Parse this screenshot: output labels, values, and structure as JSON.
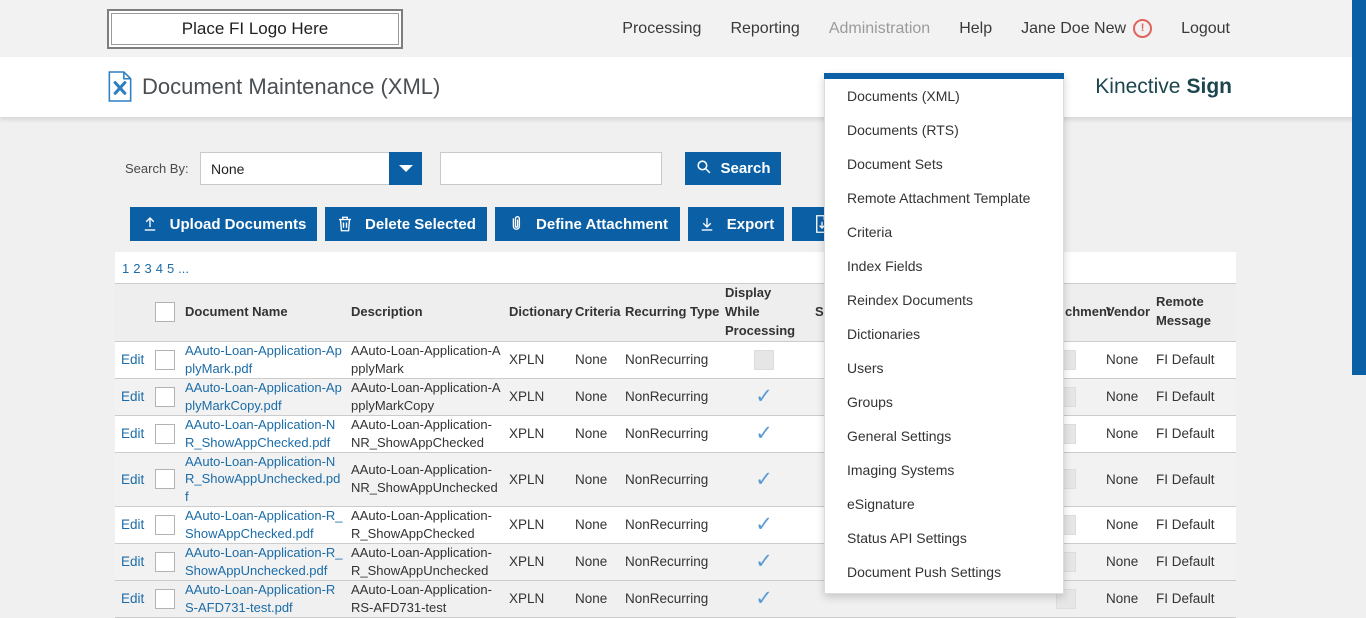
{
  "topbar": {
    "logo_text": "Place FI Logo Here",
    "nav": [
      {
        "label": "Processing"
      },
      {
        "label": "Reporting"
      },
      {
        "label": "Administration",
        "state": "open"
      },
      {
        "label": "Help"
      },
      {
        "label": "Jane Doe New",
        "alert_icon": true
      },
      {
        "label": "Logout"
      }
    ]
  },
  "header": {
    "title": "Document Maintenance (XML)",
    "brand_name": "Kinective",
    "brand_bold": "Sign"
  },
  "search": {
    "label": "Search By:",
    "selected_option": "None",
    "input_value": "",
    "input_placeholder": "",
    "button_label": "Search"
  },
  "toolbar": {
    "buttons": [
      {
        "label": "Upload Documents",
        "icon": "upload-icon"
      },
      {
        "label": "Delete Selected",
        "icon": "trash-icon"
      },
      {
        "label": "Define Attachment",
        "icon": "paperclip-icon"
      },
      {
        "label": "Export",
        "icon": "download-icon"
      },
      {
        "label": "",
        "icon": "document-download-icon"
      }
    ]
  },
  "pagination": {
    "pages": [
      "1",
      "2",
      "3",
      "4",
      "5",
      "..."
    ]
  },
  "table": {
    "headers": {
      "document_name": "Document Name",
      "description": "Description",
      "dictionary": "Dictionary",
      "criteria": "Criteria",
      "recurring_type": "Recurring Type",
      "display_while_processing": "Display While Processing",
      "partial_left_fragment": "S",
      "partial_attachment_fragment": "chment",
      "vendor": "Vendor",
      "remote_message": "Remote Message"
    },
    "rows": [
      {
        "edit": "Edit",
        "document_name": "AAuto-Loan-Application-ApplyMark.pdf",
        "description": "AAuto-Loan-Application-ApplyMark",
        "dictionary": "XPLN",
        "criteria": "None",
        "recurring_type": "NonRecurring",
        "display_while_processing": false,
        "attachment_checked": false,
        "vendor": "None",
        "remote_message": "FI Default"
      },
      {
        "edit": "Edit",
        "document_name": "AAuto-Loan-Application-ApplyMarkCopy.pdf",
        "description": "AAuto-Loan-Application-ApplyMarkCopy",
        "dictionary": "XPLN",
        "criteria": "None",
        "recurring_type": "NonRecurring",
        "display_while_processing": true,
        "attachment_checked": false,
        "vendor": "None",
        "remote_message": "FI Default"
      },
      {
        "edit": "Edit",
        "document_name": "AAuto-Loan-Application-NR_ShowAppChecked.pdf",
        "description": "AAuto-Loan-Application-NR_ShowAppChecked",
        "dictionary": "XPLN",
        "criteria": "None",
        "recurring_type": "NonRecurring",
        "display_while_processing": true,
        "attachment_checked": false,
        "vendor": "None",
        "remote_message": "FI Default"
      },
      {
        "edit": "Edit",
        "document_name": "AAuto-Loan-Application-NR_ShowAppUnchecked.pdf",
        "description": "AAuto-Loan-Application-NR_ShowAppUnchecked",
        "dictionary": "XPLN",
        "criteria": "None",
        "recurring_type": "NonRecurring",
        "display_while_processing": true,
        "attachment_checked": false,
        "vendor": "None",
        "remote_message": "FI Default"
      },
      {
        "edit": "Edit",
        "document_name": "AAuto-Loan-Application-R_ShowAppChecked.pdf",
        "description": "AAuto-Loan-Application-R_ShowAppChecked",
        "dictionary": "XPLN",
        "criteria": "None",
        "recurring_type": "NonRecurring",
        "display_while_processing": true,
        "attachment_checked": false,
        "vendor": "None",
        "remote_message": "FI Default"
      },
      {
        "edit": "Edit",
        "document_name": "AAuto-Loan-Application-R_ShowAppUnchecked.pdf",
        "description": "AAuto-Loan-Application-R_ShowAppUnchecked",
        "dictionary": "XPLN",
        "criteria": "None",
        "recurring_type": "NonRecurring",
        "display_while_processing": true,
        "attachment_checked": false,
        "vendor": "None",
        "remote_message": "FI Default"
      },
      {
        "edit": "Edit",
        "document_name": "AAuto-Loan-Application-RS-AFD731-test.pdf",
        "description": "AAuto-Loan-Application-RS-AFD731-test",
        "dictionary": "XPLN",
        "criteria": "None",
        "recurring_type": "NonRecurring",
        "display_while_processing": true,
        "attachment_checked": false,
        "vendor": "None",
        "remote_message": "FI Default"
      }
    ]
  },
  "admin_menu": {
    "items": [
      "Documents (XML)",
      "Documents (RTS)",
      "Document Sets",
      "Remote Attachment Template",
      "Criteria",
      "Index Fields",
      "Reindex Documents",
      "Dictionaries",
      "Users",
      "Groups",
      "General Settings",
      "Imaging Systems",
      "eSignature",
      "Status API Settings",
      "Document Push Settings"
    ]
  },
  "colors": {
    "accent_blue": "#0b5fa5",
    "link_blue": "#1b6ca8",
    "brand_teal": "#1c454e",
    "alert_red": "#e0635e",
    "check_blue": "#5b9bd5"
  }
}
